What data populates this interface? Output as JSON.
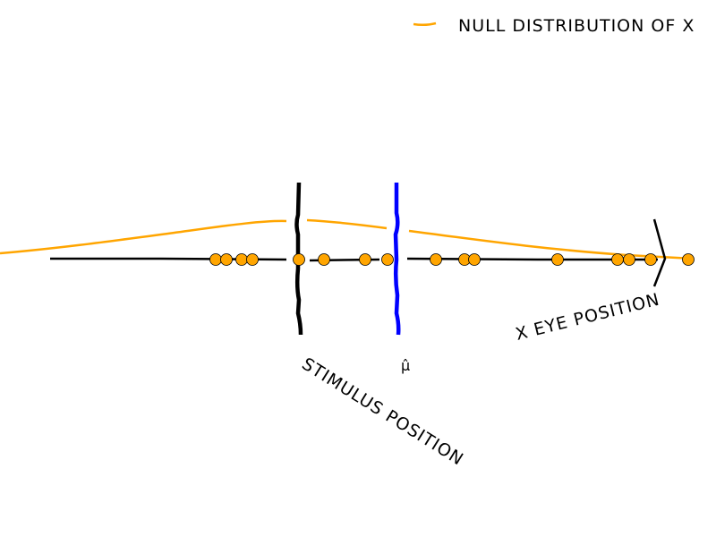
{
  "legend": {
    "label": "NULL DISTRIBUTION OF X",
    "color": "#ffa500"
  },
  "annotations": {
    "stimulus": "STIMULUS POSITION",
    "mu_hat": "μ̂",
    "eye": "X EYE POSITION"
  },
  "colors": {
    "stimulus_line": "#000000",
    "mu_line": "#0000ff",
    "points": "#ffa500",
    "curve": "#ffa500"
  }
}
